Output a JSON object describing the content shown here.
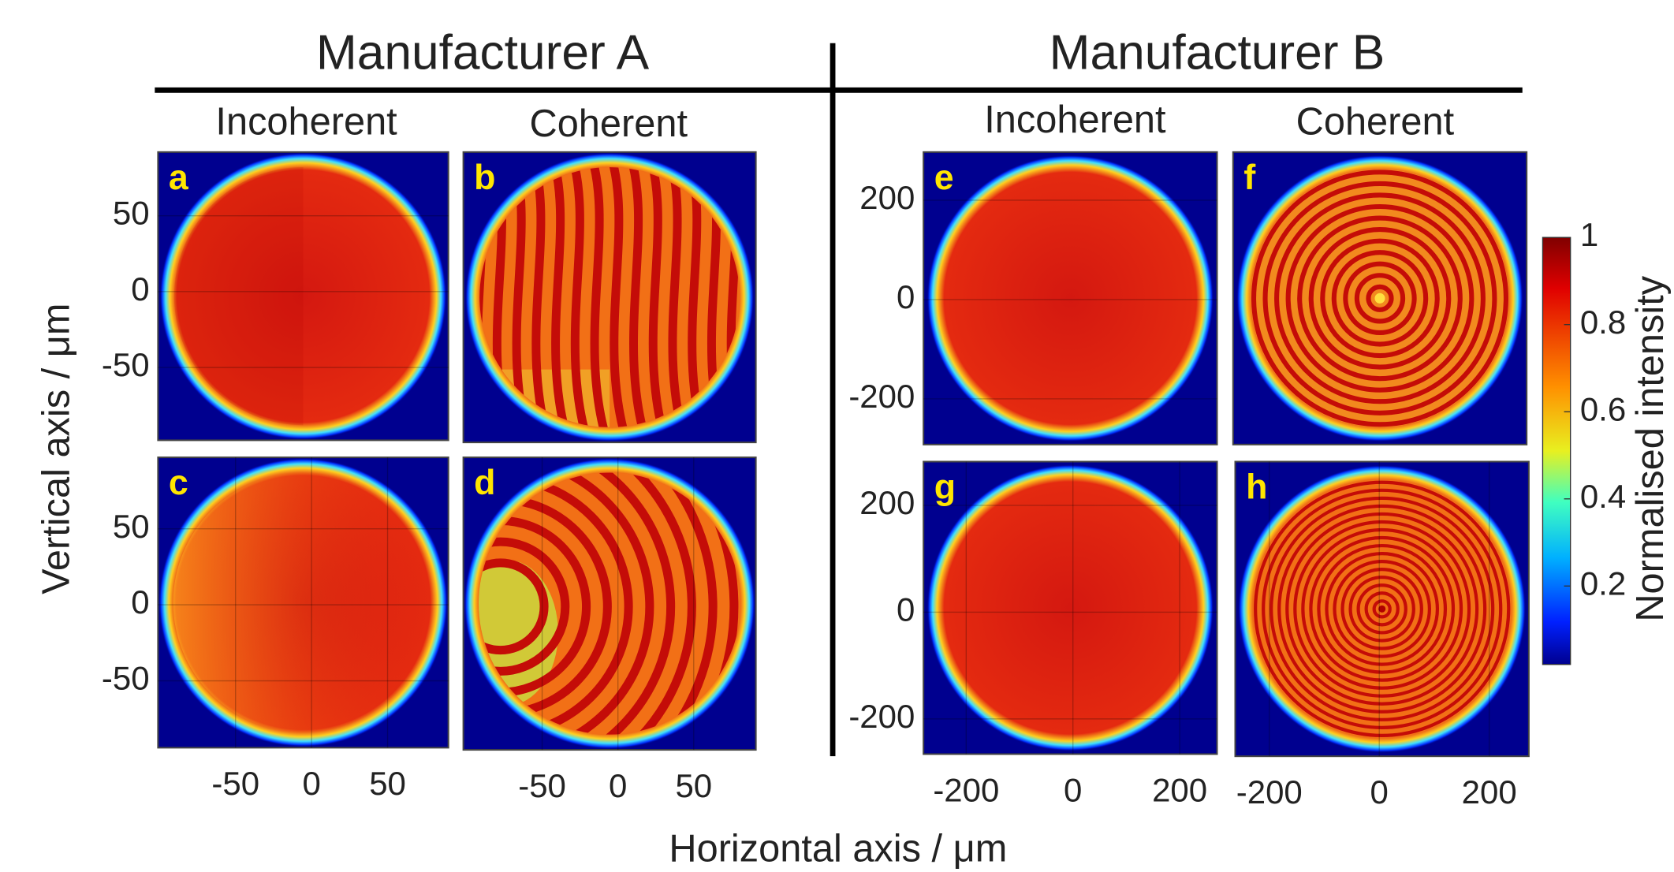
{
  "figure": {
    "x_label": "Horizontal axis / μm",
    "y_label": "Vertical axis / μm",
    "groups": [
      {
        "title": "Manufacturer A",
        "columns": [
          "Incoherent",
          "Coherent"
        ]
      },
      {
        "title": "Manufacturer B",
        "columns": [
          "Incoherent",
          "Coherent"
        ]
      }
    ],
    "panels": [
      {
        "label": "a",
        "xlim": [
          -101,
          90
        ],
        "ylim": [
          -98,
          92
        ],
        "yticks": [
          50,
          0,
          -50
        ]
      },
      {
        "label": "b",
        "xlim": [
          -102,
          91
        ],
        "ylim": [
          -98,
          92
        ]
      },
      {
        "label": "c",
        "xlim": [
          -101,
          90
        ],
        "ylim": [
          -94,
          97
        ],
        "xticks": [
          -50,
          0,
          50
        ],
        "yticks": [
          50,
          0,
          -50
        ]
      },
      {
        "label": "d",
        "xlim": [
          -102,
          91
        ],
        "ylim": [
          -94,
          97
        ],
        "xticks": [
          -50,
          0,
          50
        ]
      },
      {
        "label": "e",
        "xlim": [
          -280,
          270
        ],
        "ylim": [
          -292,
          297
        ],
        "yticks": [
          200,
          0,
          -200
        ]
      },
      {
        "label": "f",
        "xlim": [
          -262,
          272
        ],
        "ylim": [
          -292,
          297
        ]
      },
      {
        "label": "g",
        "xlim": [
          -280,
          270
        ],
        "ylim": [
          -266,
          282
        ],
        "xticks": [
          -200,
          0,
          200
        ],
        "yticks": [
          200,
          0,
          -200
        ]
      },
      {
        "label": "h",
        "xlim": [
          -262,
          272
        ],
        "ylim": [
          -266,
          282
        ],
        "xticks": [
          -200,
          0,
          200
        ]
      }
    ],
    "colorbar": {
      "label": "Normalised intensity",
      "lim": [
        0.02,
        1
      ],
      "ticks": [
        0.2,
        0.4,
        0.6,
        0.8,
        1
      ]
    }
  }
}
